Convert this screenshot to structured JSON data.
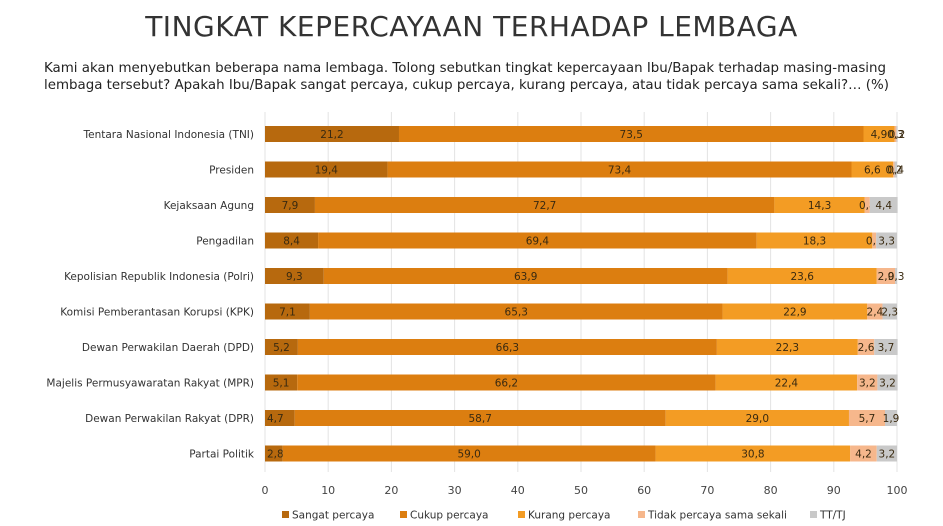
{
  "title": "TINGKAT KEPERCAYAAN TERHADAP LEMBAGA",
  "subtitle_line1": "Kami akan menyebutkan beberapa nama lembaga. Tolong sebutkan tingkat kepercayaan Ibu/Bapak terhadap masing-masing",
  "subtitle_line2": "lembaga tersebut? Apakah Ibu/Bapak sangat percaya, cukup percaya, kurang percaya, atau tidak percaya sama sekali?… (%)",
  "chart_data": {
    "type": "bar",
    "orientation": "horizontal",
    "stacked": true,
    "categories": [
      "Tentara Nasional Indonesia (TNI)",
      "Presiden",
      "Kejaksaan Agung",
      "Pengadilan",
      "Kepolisian Republik Indonesia (Polri)",
      "Komisi Pemberantasan Korupsi (KPK)",
      "Dewan Perwakilan Daerah (DPD)",
      "Majelis Permusyawaratan Rakyat (MPR)",
      "Dewan Perwakilan Rakyat (DPR)",
      "Partai Politik"
    ],
    "series": [
      {
        "name": "Sangat percaya",
        "color": "#b7690e",
        "values": [
          21.2,
          19.4,
          7.9,
          8.4,
          9.3,
          7.1,
          5.2,
          5.1,
          4.7,
          2.8
        ],
        "labels": [
          "21,2",
          "19,4",
          "7,9",
          "8,4",
          "9,3",
          "7,1",
          "5,2",
          "5,1",
          "4,7",
          "2,8"
        ]
      },
      {
        "name": "Cukup percaya",
        "color": "#dc7e10",
        "values": [
          73.5,
          73.4,
          72.7,
          69.4,
          63.9,
          65.3,
          66.3,
          66.2,
          58.7,
          59.0
        ],
        "labels": [
          "73,5",
          "73,4",
          "72,7",
          "69,4",
          "63,9",
          "65,3",
          "66,3",
          "66,2",
          "58,7",
          "59,0"
        ]
      },
      {
        "name": "Kurang percaya",
        "color": "#f39c24",
        "values": [
          4.9,
          6.6,
          14.3,
          18.3,
          23.6,
          22.9,
          22.3,
          22.4,
          29.0,
          30.8
        ],
        "labels": [
          "4,9",
          "6,6",
          "14,3",
          "18,3",
          "23,6",
          "22,9",
          "22,3",
          "22,4",
          "29,0",
          "30,8"
        ]
      },
      {
        "name": "Tidak percaya sama sekali",
        "color": "#f6b78c",
        "values": [
          0.3,
          0.2,
          0.8,
          0.6,
          2.9,
          2.4,
          2.6,
          3.2,
          5.7,
          4.2
        ],
        "labels": [
          "0,3",
          "0,2",
          "0,8",
          "0,6",
          "2,9",
          "2,4",
          "2,6",
          "3,2",
          "5,7",
          "4,2"
        ]
      },
      {
        "name": "TT/TJ",
        "color": "#c9c9c9",
        "values": [
          0.2,
          0.4,
          4.4,
          3.3,
          0.3,
          2.3,
          3.7,
          3.2,
          1.9,
          3.2
        ],
        "labels": [
          "0,2",
          "0,4",
          "4,4",
          "3,3",
          "0,3",
          "2,3",
          "3,7",
          "3,2",
          "1,9",
          "3,2"
        ]
      }
    ],
    "xlim": [
      0,
      100
    ],
    "xticks": [
      "0",
      "10",
      "20",
      "30",
      "40",
      "50",
      "60",
      "70",
      "80",
      "90",
      "100"
    ],
    "grid": true,
    "legend_position": "bottom"
  }
}
